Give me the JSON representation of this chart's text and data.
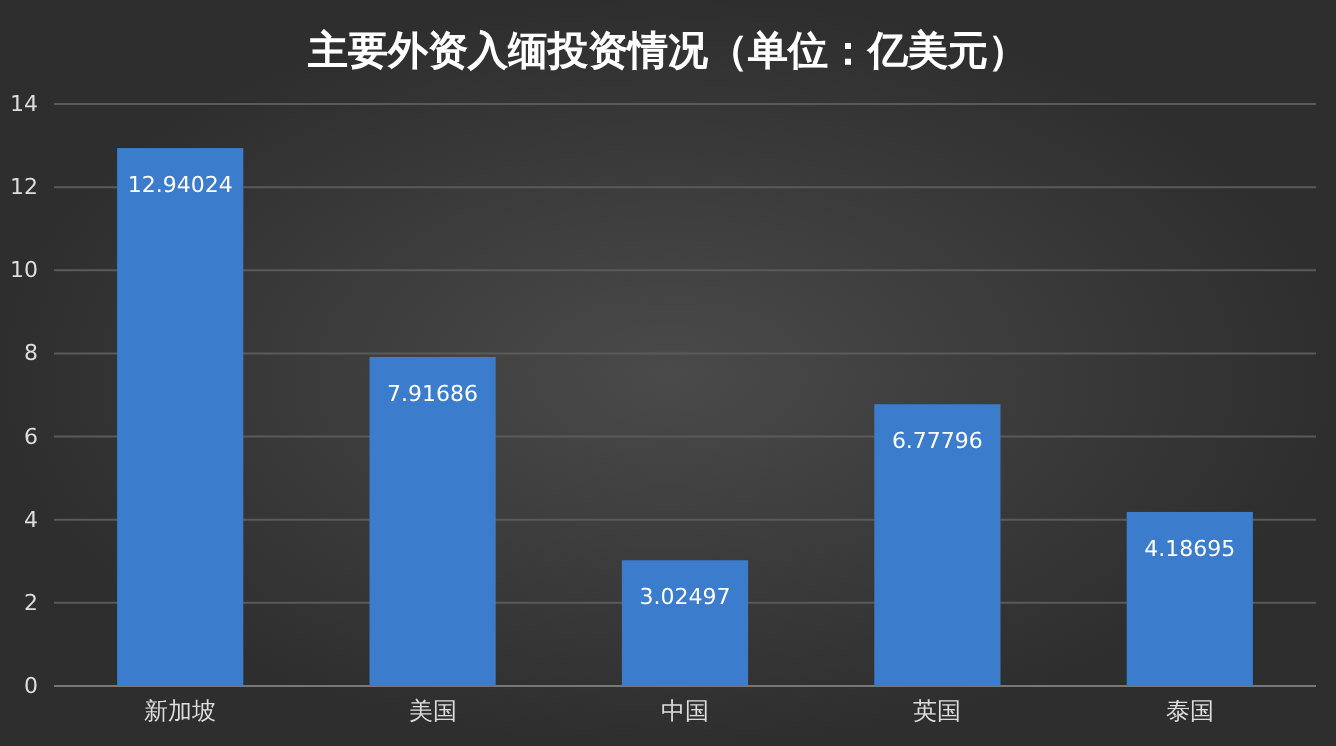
{
  "chart_data": {
    "type": "bar",
    "title": "主要外资入缅投资情况（单位：亿美元）",
    "categories": [
      "新加坡",
      "美国",
      "中国",
      "英国",
      "泰国"
    ],
    "values": [
      12.94024,
      7.91686,
      3.02497,
      6.77796,
      4.18695
    ],
    "color": "#3b7ccc",
    "ylim": [
      0,
      14
    ],
    "yticks": [
      0,
      2,
      4,
      6,
      8,
      10,
      12,
      14
    ],
    "grid": "y",
    "data_labels": true
  }
}
